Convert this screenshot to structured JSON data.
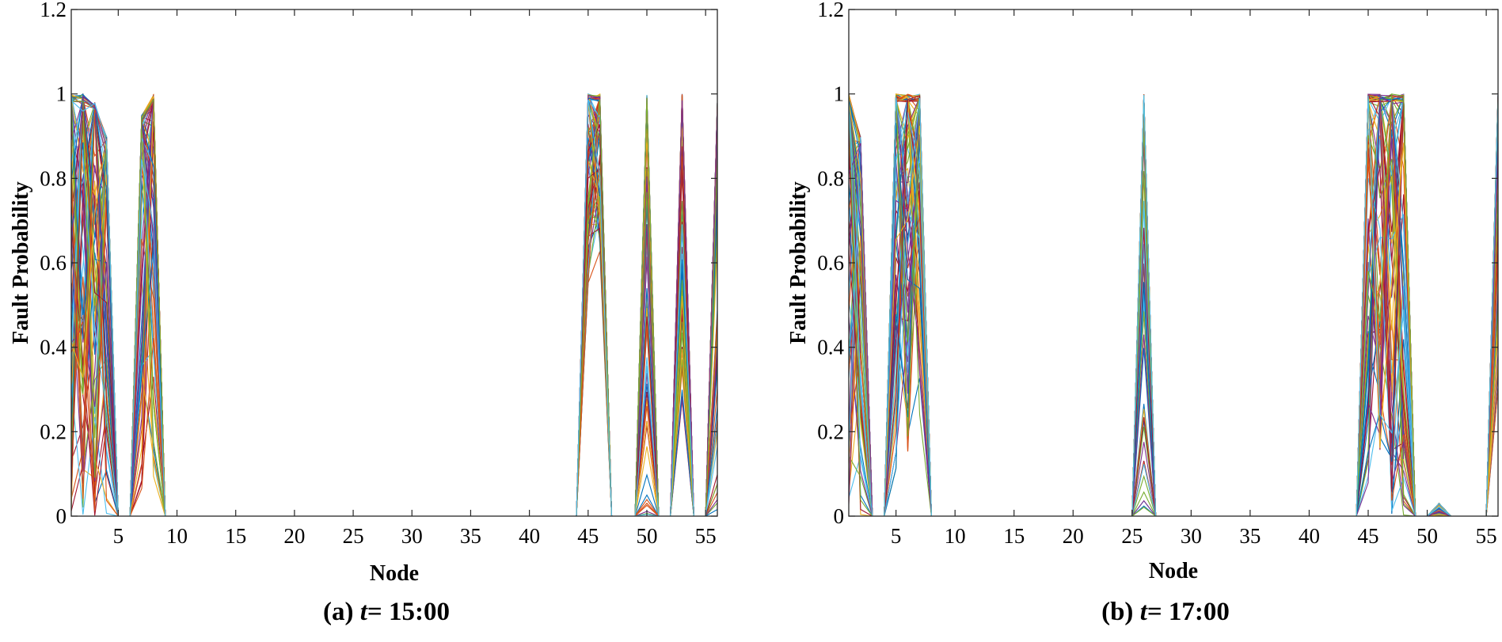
{
  "palette": [
    "#0072BD",
    "#D95319",
    "#EDB120",
    "#7E2F8E",
    "#77AC30",
    "#4DBEEE",
    "#A2142F"
  ],
  "chart_data": [
    {
      "type": "line",
      "caption_prefix": "(a) ",
      "caption_var": "t",
      "caption_rest": "= 15:00",
      "xlabel": "Node",
      "ylabel": "Fault Probability",
      "xlim": [
        1,
        56
      ],
      "ylim": [
        0,
        1.2
      ],
      "xticks": [
        5,
        10,
        15,
        20,
        25,
        30,
        35,
        40,
        45,
        50,
        55
      ],
      "yticks": [
        0,
        0.2,
        0.4,
        0.6,
        0.8,
        1,
        1.2
      ],
      "ytick_labels": [
        "0",
        "0.2",
        "0.4",
        "0.6",
        "0.8",
        "1",
        "1.2"
      ],
      "grid": false,
      "legend": "none",
      "num_series": 90,
      "fault_nodes": [
        {
          "node": 1,
          "max": 1.0,
          "min": 0.0
        },
        {
          "node": 2,
          "max": 1.0,
          "min": 0.0
        },
        {
          "node": 3,
          "max": 0.98,
          "min": 0.0
        },
        {
          "node": 4,
          "max": 0.9,
          "min": 0.0
        },
        {
          "node": 7,
          "max": 0.95,
          "min": 0.05
        },
        {
          "node": 8,
          "max": 1.0,
          "min": 0.07
        },
        {
          "node": 45,
          "max": 1.0,
          "min": 0.55
        },
        {
          "node": 46,
          "max": 1.0,
          "min": 0.62
        },
        {
          "node": 50,
          "max": 1.0,
          "min": 0.0
        },
        {
          "node": 53,
          "max": 1.0,
          "min": 0.27
        },
        {
          "node": 56,
          "max": 0.98,
          "min": 0.0
        }
      ]
    },
    {
      "type": "line",
      "caption_prefix": "(b) ",
      "caption_var": "t",
      "caption_rest": "= 17:00",
      "xlabel": "Node",
      "ylabel": "Fault Probability",
      "xlim": [
        1,
        56
      ],
      "ylim": [
        0,
        1.2
      ],
      "xticks": [
        5,
        10,
        15,
        20,
        25,
        30,
        35,
        40,
        45,
        50,
        55
      ],
      "yticks": [
        0,
        0.2,
        0.4,
        0.6,
        0.8,
        1,
        1.2
      ],
      "ytick_labels": [
        "0",
        "0.2",
        "0.4",
        "0.6",
        "0.8",
        "1",
        "1.2"
      ],
      "grid": false,
      "legend": "none",
      "num_series": 90,
      "fault_nodes": [
        {
          "node": 1,
          "max": 1.0,
          "min": 0.0
        },
        {
          "node": 2,
          "max": 0.9,
          "min": 0.0
        },
        {
          "node": 5,
          "max": 1.0,
          "min": 0.1
        },
        {
          "node": 6,
          "max": 1.0,
          "min": 0.15
        },
        {
          "node": 7,
          "max": 1.0,
          "min": 0.2
        },
        {
          "node": 26,
          "max": 1.0,
          "min": 0.02
        },
        {
          "node": 45,
          "max": 1.0,
          "min": 0.05
        },
        {
          "node": 46,
          "max": 1.0,
          "min": 0.15
        },
        {
          "node": 47,
          "max": 1.0,
          "min": 0.0
        },
        {
          "node": 48,
          "max": 1.0,
          "min": 0.0
        },
        {
          "node": 51,
          "max": 0.03,
          "min": 0.0
        },
        {
          "node": 56,
          "max": 1.0,
          "min": 0.3
        }
      ]
    }
  ]
}
